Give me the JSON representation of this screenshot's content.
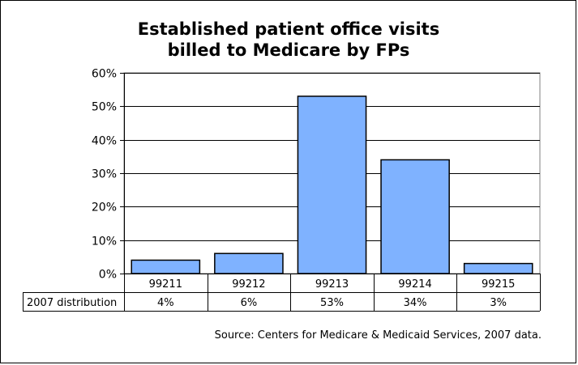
{
  "chart_data": {
    "type": "bar",
    "title": [
      "Established patient office visits",
      "billed to Medicare by FPs"
    ],
    "categories": [
      "99211",
      "99212",
      "99213",
      "99214",
      "99215"
    ],
    "series": [
      {
        "name": "2007 distribution",
        "values": [
          4,
          6,
          53,
          34,
          3
        ]
      }
    ],
    "data_table": {
      "row_label": "2007 distribution",
      "cells": [
        "4%",
        "6%",
        "53%",
        "34%",
        "3%"
      ]
    },
    "y_ticks": [
      "0%",
      "10%",
      "20%",
      "30%",
      "40%",
      "50%",
      "60%"
    ],
    "ylim": [
      0,
      60
    ],
    "ylabel": "",
    "xlabel": "",
    "grid": true,
    "colors": {
      "bar_fill": "#7fb2ff",
      "bar_stroke": "#000000",
      "plot_bg": "#ffffff",
      "grid": "#000000"
    },
    "source": "Source: Centers for Medicare & Medicaid Services, 2007 data."
  }
}
